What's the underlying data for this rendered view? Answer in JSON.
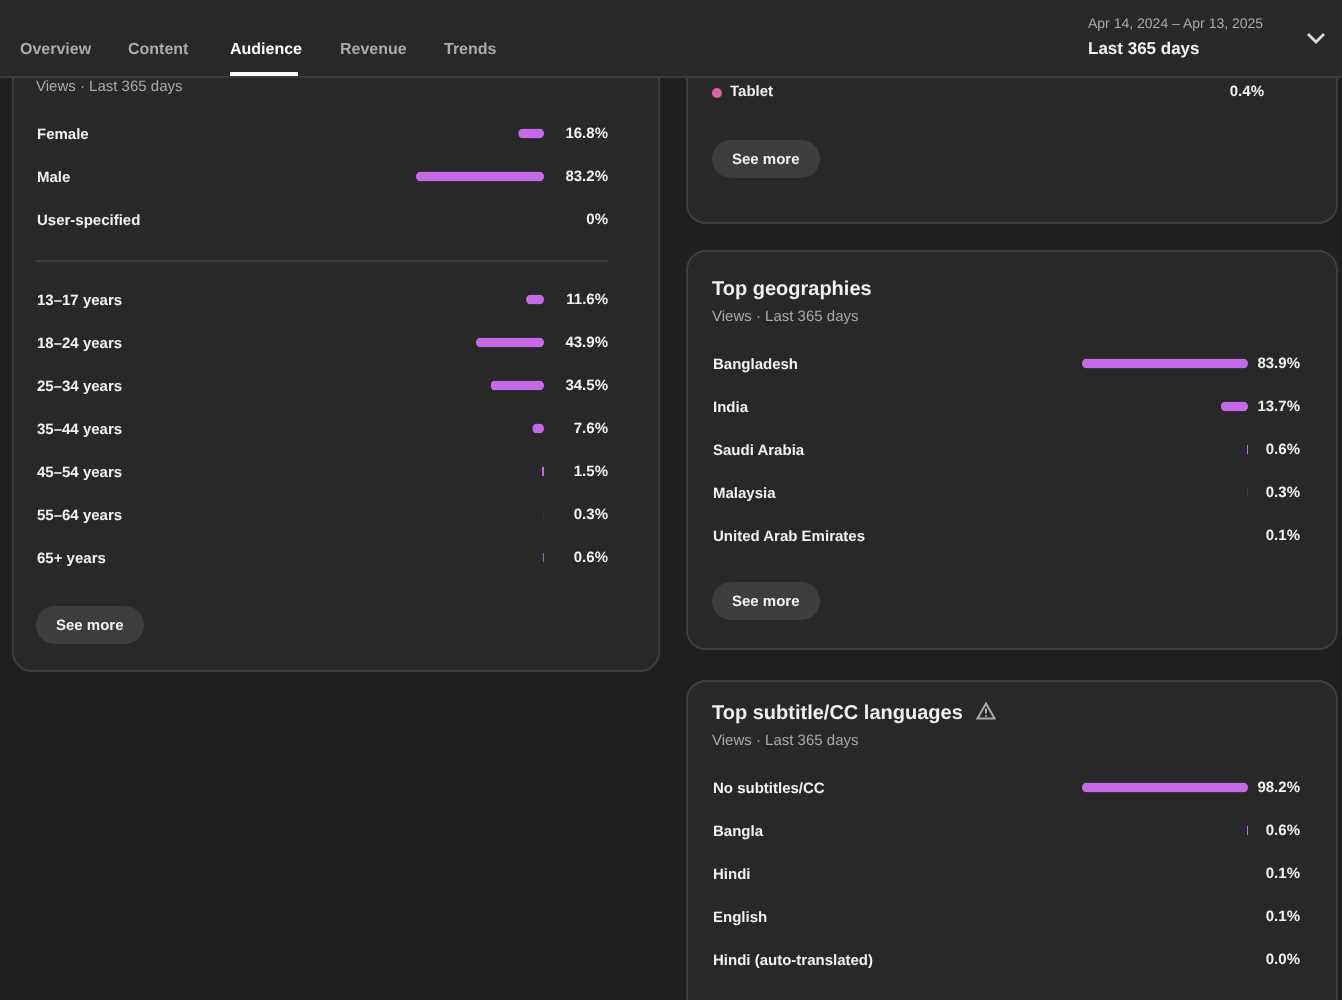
{
  "chart_data": [
    {
      "type": "other",
      "annotations": [
        "Overview",
        "Content",
        "Audience",
        "Revenue",
        "Trends",
        "Apr 14, 2024 – Apr 13, 2025",
        "Last 365 days"
      ]
    },
    {
      "type": "bar",
      "orientation": "horizontal",
      "subtitle": "Views · Last 365 days",
      "categories": [
        "Female",
        "Male",
        "User-specified"
      ],
      "values": [
        16.8,
        83.2,
        0
      ],
      "value_labels": [
        "16.8%",
        "83.2%",
        "0%"
      ],
      "color": "#c46ae8"
    },
    {
      "type": "bar",
      "orientation": "horizontal",
      "categories": [
        "13–17 years",
        "18–24 years",
        "25–34 years",
        "35–44 years",
        "45–54 years",
        "55–64 years",
        "65+ years"
      ],
      "values": [
        11.6,
        43.9,
        34.5,
        7.6,
        1.5,
        0.3,
        0.6
      ],
      "value_labels": [
        "11.6%",
        "43.9%",
        "34.5%",
        "7.6%",
        "1.5%",
        "0.3%",
        "0.6%"
      ],
      "color": "#c46ae8",
      "annotations": [
        "See more"
      ]
    },
    {
      "type": "other",
      "categories": [
        "Tablet"
      ],
      "colors": [
        "#e2609c"
      ],
      "value_labels": [
        "0.4%"
      ],
      "annotations": [
        "See more"
      ]
    },
    {
      "type": "bar",
      "orientation": "horizontal",
      "title": "Top geographies",
      "subtitle": "Views · Last 365 days",
      "categories": [
        "Bangladesh",
        "India",
        "Saudi Arabia",
        "Malaysia",
        "United Arab Emirates"
      ],
      "values": [
        83.9,
        13.7,
        0.6,
        0.3,
        0.1
      ],
      "value_labels": [
        "83.9%",
        "13.7%",
        "0.6%",
        "0.3%",
        "0.1%"
      ],
      "color": "#c46ae8",
      "annotations": [
        "See more"
      ]
    },
    {
      "type": "bar",
      "orientation": "horizontal",
      "title": "Top subtitle/CC languages",
      "subtitle": "Views · Last 365 days",
      "categories": [
        "No subtitles/CC",
        "Bangla",
        "Hindi",
        "English",
        "Hindi (auto-translated)"
      ],
      "values": [
        98.2,
        0.6,
        0.1,
        0.1,
        0.0
      ],
      "value_labels": [
        "98.2%",
        "0.6%",
        "0.1%",
        "0.1%",
        "0.0%"
      ],
      "color": "#c46ae8"
    }
  ]
}
